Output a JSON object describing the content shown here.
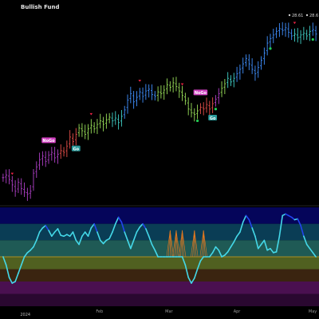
{
  "header": {
    "title": "Bullish Fund",
    "last_prices": [
      "28.61",
      "28.6"
    ],
    "price_icon_names": [
      "eye-icon",
      "eye-icon"
    ]
  },
  "colors": {
    "background": "#000000",
    "bar_purple": "#b040c8",
    "bar_red": "#e8504a",
    "bar_green": "#9ae05a",
    "bar_teal": "#40d0c8",
    "bar_blue": "#4090ff",
    "up_marker": "#22cc55",
    "down_marker": "#ee2244",
    "nogo_badge": "#d040c0",
    "go_badge": "#2a9a9a",
    "oscillator_line_up": "#44d8e8",
    "oscillator_line_down": "#2244ee",
    "zero_line": "#d0a020",
    "band_colors": [
      "#05055a",
      "#0a3d55",
      "#1f5a55",
      "#506020",
      "#3a2410",
      "#4a1050",
      "#2a0830"
    ]
  },
  "chart_data": [
    {
      "type": "ohlc",
      "title": "",
      "xlabel": "",
      "ylabel": "",
      "x_tick_labels": [
        "2024",
        "Feb",
        "Mar",
        "Apr",
        "May"
      ],
      "year_label": "2024",
      "series": [
        {
          "values": [
            2.0,
            2.3,
            1.8,
            1.2,
            0.5,
            1.5,
            0.8,
            0.4,
            0.2,
            0.5,
            2.5,
            3.2,
            4.0,
            4.4,
            3.8,
            4.5,
            4.8,
            4.2,
            4.6,
            5.0,
            4.8,
            5.5,
            6.5,
            6.0,
            6.8,
            7.5,
            7.2,
            6.8,
            7.4,
            7.8,
            7.4,
            7.9,
            8.3,
            7.9,
            8.4,
            8.7,
            8.3,
            8.6,
            8.1,
            8.8,
            9.5,
            10.6,
            11.3,
            10.4,
            10.9,
            11.5,
            11.0,
            11.6,
            11.8,
            11.2,
            11.0,
            11.5,
            11.3,
            11.7,
            12.3,
            12.0,
            12.5,
            12.1,
            11.6,
            11.1,
            10.5,
            9.6,
            9.2,
            9.0,
            9.4,
            9.8,
            9.6,
            10.1,
            9.6,
            10.2,
            10.7,
            11.3,
            11.9,
            12.4,
            13.0,
            12.6,
            13.0,
            13.5,
            14.0,
            14.6,
            15.2,
            14.6,
            14.0,
            13.5,
            14.2,
            15.0,
            15.8,
            16.9,
            17.4,
            17.8,
            18.2,
            18.5,
            18.3,
            18.6,
            18.1,
            17.7,
            17.9,
            17.5,
            17.8,
            18.0,
            17.7,
            18.2,
            18.4,
            17.9
          ]
        }
      ],
      "bar_colors": [
        "purple",
        "purple",
        "purple",
        "purple",
        "purple",
        "purple",
        "purple",
        "purple",
        "purple",
        "purple",
        "purple",
        "purple",
        "purple",
        "purple",
        "purple",
        "purple",
        "purple",
        "purple",
        "purple",
        "red",
        "red",
        "red",
        "red",
        "red",
        "red",
        "green",
        "green",
        "green",
        "green",
        "green",
        "green",
        "green",
        "green",
        "green",
        "green",
        "green",
        "teal",
        "teal",
        "teal",
        "teal",
        "blue",
        "blue",
        "blue",
        "blue",
        "blue",
        "blue",
        "blue",
        "blue",
        "blue",
        "blue",
        "blue",
        "green",
        "green",
        "green",
        "green",
        "green",
        "green",
        "green",
        "green",
        "green",
        "green",
        "green",
        "green",
        "green",
        "green",
        "red",
        "red",
        "red",
        "red",
        "red",
        "purple",
        "purple",
        "green",
        "green",
        "teal",
        "teal",
        "teal",
        "blue",
        "blue",
        "blue",
        "blue",
        "blue",
        "blue",
        "blue",
        "blue",
        "blue",
        "blue",
        "blue",
        "blue",
        "blue",
        "blue",
        "blue",
        "blue",
        "blue",
        "blue",
        "blue",
        "teal",
        "teal",
        "teal",
        "teal",
        "teal",
        "teal",
        "blue",
        "blue"
      ],
      "down_markers": [
        3,
        29,
        45,
        59,
        96
      ],
      "up_markers": [
        64,
        70,
        88,
        102
      ],
      "badges": [
        {
          "label": "NoGo",
          "bar": 15,
          "kind": "nogo"
        },
        {
          "label": "Go",
          "bar": 24,
          "kind": "go"
        },
        {
          "label": "NoGo",
          "bar": 65,
          "kind": "nogo"
        },
        {
          "label": "Go",
          "bar": 69,
          "kind": "go"
        }
      ]
    },
    {
      "type": "line",
      "title": "",
      "ylim": [
        -6,
        6
      ],
      "bands": [
        6,
        4,
        2,
        0,
        -1.5,
        -3,
        -4.5,
        -6
      ],
      "series": [
        {
          "values": [
            0.0,
            -1.0,
            -2.5,
            -3.2,
            -3.0,
            -2.0,
            -1.0,
            0.0,
            0.5,
            0.8,
            1.2,
            2.0,
            3.0,
            3.5,
            3.8,
            3.2,
            2.5,
            3.0,
            3.4,
            2.6,
            2.5,
            2.7,
            2.5,
            3.0,
            2.0,
            1.5,
            2.5,
            3.0,
            2.5,
            3.5,
            4.0,
            3.0,
            2.0,
            1.6,
            2.0,
            2.2,
            3.0,
            4.0,
            4.8,
            4.2,
            3.0,
            2.0,
            1.0,
            2.0,
            3.0,
            3.6,
            4.0,
            3.4,
            2.5,
            1.5,
            0.8,
            0.0,
            0.0,
            0.0,
            0.0,
            0.0,
            0.0,
            0.0,
            0.0,
            0.0,
            -1.0,
            -2.5,
            -3.2,
            -2.6,
            -1.5,
            -0.5,
            0.0,
            0.0,
            0.0,
            0.5,
            1.2,
            0.8,
            0.0,
            0.2,
            0.6,
            1.2,
            1.8,
            2.5,
            3.0,
            4.2,
            5.0,
            4.5,
            3.5,
            2.5,
            1.0,
            1.5,
            2.0,
            0.8,
            1.0,
            0.5,
            0.6,
            2.5,
            5.0,
            5.2,
            5.0,
            4.8,
            4.5,
            4.6,
            3.8,
            2.5,
            1.5,
            1.0,
            0.5,
            0.0
          ],
          "colors_segment": "line_up/line_down"
        }
      ],
      "dip_bar": 61,
      "fan_markers": [
        55,
        57,
        59,
        63,
        66
      ]
    }
  ]
}
